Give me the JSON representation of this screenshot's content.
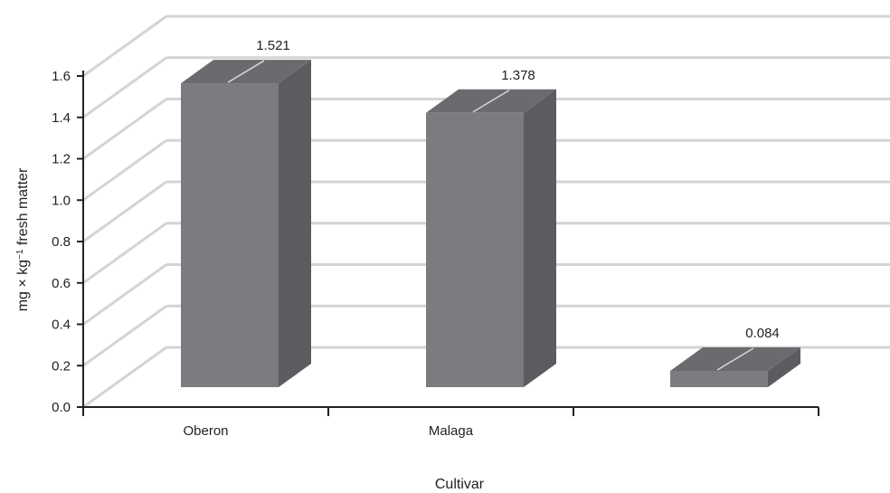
{
  "chart_data": {
    "type": "bar",
    "style": "3d-column",
    "categories": [
      "Oberon",
      "Malaga",
      ""
    ],
    "values": [
      1.521,
      1.378,
      0.084
    ],
    "data_labels": [
      "1.521",
      "1.378",
      "0.084"
    ],
    "xlabel": "Cultivar",
    "ylabel": {
      "prefix": "mg × kg",
      "superscript": "−1",
      "suffix": " fresh matter"
    },
    "ylim": [
      0,
      1.6
    ],
    "yticks": [
      "0.0",
      "0.2",
      "0.4",
      "0.6",
      "0.8",
      "1.0",
      "1.2",
      "1.4",
      "1.6"
    ],
    "grid": true,
    "colors": {
      "bar_front": "#7b7c80",
      "bar_side": "#5b5c60",
      "bar_top": "#6a6b6f",
      "grid": "#d4d4d4",
      "axis": "#222222"
    }
  }
}
